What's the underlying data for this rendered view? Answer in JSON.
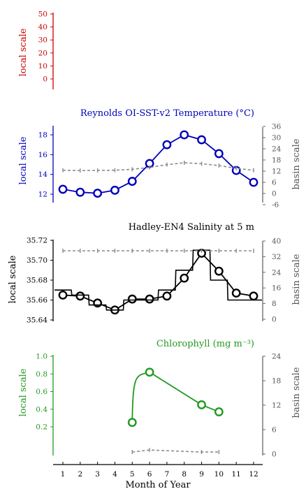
{
  "x_axis": {
    "label": "Month of Year",
    "ticks": [
      "1",
      "2",
      "3",
      "4",
      "5",
      "6",
      "7",
      "8",
      "9",
      "10",
      "11",
      "12"
    ]
  },
  "colors": {
    "red": "#cc0000",
    "blue": "#0000bb",
    "black": "#000000",
    "green": "#229922",
    "grey": "#8c8c8c",
    "grey_axis": "#666666"
  },
  "chart_data": [
    {
      "type": "line",
      "title": "",
      "ylabel": "local scale",
      "ylim": [
        0,
        50
      ],
      "yticks": [
        "0",
        "10",
        "20",
        "30",
        "40",
        "50"
      ],
      "x": [],
      "series": []
    },
    {
      "type": "line",
      "title": "Reynolds OI-SST-v2 Temperature (°C)",
      "ylabel": "local scale",
      "ylim": [
        11.3,
        18.7
      ],
      "yticks": [
        "12",
        "14",
        "16",
        "18"
      ],
      "y2label": "basin scale",
      "y2lim": [
        -6,
        36
      ],
      "y2ticks": [
        "-6",
        "0",
        "6",
        "12",
        "18",
        "24",
        "30",
        "36"
      ],
      "x": [
        1,
        2,
        3,
        4,
        5,
        6,
        7,
        8,
        9,
        10,
        11,
        12
      ],
      "series": [
        {
          "axis": "local",
          "markers": true,
          "values": [
            12.5,
            12.2,
            12.1,
            12.4,
            13.3,
            15.1,
            17.0,
            18.0,
            17.5,
            16.1,
            14.4,
            13.2
          ]
        },
        {
          "axis": "basin",
          "dashed": true,
          "values": [
            12.5,
            12.3,
            12.4,
            12.5,
            13.0,
            14.0,
            15.5,
            16.5,
            16.0,
            15.0,
            13.5,
            12.5
          ]
        }
      ]
    },
    {
      "type": "line",
      "title": "Hadley-EN4 Salinity at 5 m",
      "ylabel": "local scale",
      "ylim": [
        35.64,
        35.72
      ],
      "yticks": [
        "35.64",
        "35.66",
        "35.68",
        "35.70",
        "35.72"
      ],
      "y2label": "basin scale",
      "y2lim": [
        0,
        40
      ],
      "y2ticks": [
        "0",
        "8",
        "16",
        "24",
        "32",
        "40"
      ],
      "x": [
        1,
        2,
        3,
        4,
        5,
        6,
        7,
        8,
        9,
        10,
        11,
        12
      ],
      "series": [
        {
          "axis": "local",
          "markers": true,
          "values": [
            35.665,
            35.664,
            35.657,
            35.65,
            35.661,
            35.661,
            35.664,
            35.682,
            35.707,
            35.689,
            35.667,
            35.664
          ]
        },
        {
          "axis": "local",
          "stepped": true,
          "values": [
            35.67,
            35.665,
            35.655,
            35.65,
            35.66,
            35.66,
            35.67,
            35.69,
            35.71,
            35.68,
            35.66,
            35.66
          ]
        },
        {
          "axis": "basin",
          "dashed": true,
          "values": [
            35,
            35,
            35,
            35,
            35,
            35,
            35,
            35,
            35,
            35,
            35,
            35
          ]
        }
      ]
    },
    {
      "type": "line",
      "title": "Chlorophyll (mg m⁻³)",
      "ylabel": "local scale",
      "ylim": [
        0.1,
        1.0
      ],
      "yticks": [
        "0.2",
        "0.4",
        "0.6",
        "0.8",
        "1.0"
      ],
      "y2label": "basin scale",
      "y2lim": [
        0,
        24
      ],
      "y2ticks": [
        "0",
        "6",
        "12",
        "18",
        "24"
      ],
      "x": [
        5,
        6,
        9,
        10
      ],
      "series": [
        {
          "axis": "local",
          "markers": true,
          "values": [
            0.25,
            0.82,
            0.45,
            0.37
          ]
        },
        {
          "axis": "basin",
          "dashed": true,
          "values": [
            0.5,
            1.0,
            0.5,
            0.5
          ]
        }
      ]
    }
  ]
}
